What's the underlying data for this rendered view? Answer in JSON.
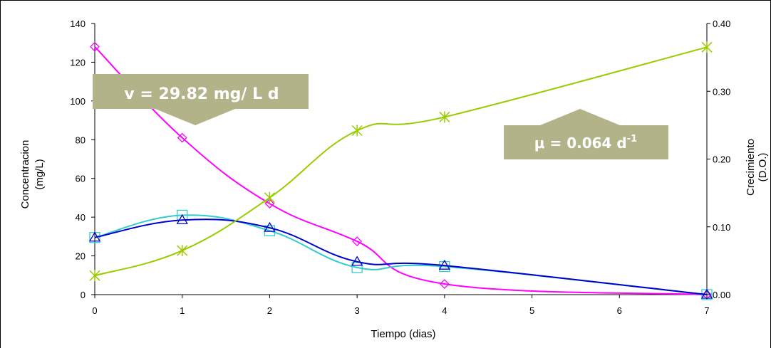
{
  "chart_data": {
    "type": "line",
    "title": "",
    "xlabel": "Tiempo (dias)",
    "ylabel_lines": [
      "Concentracion",
      "(mg/L)"
    ],
    "y2label_lines": [
      "Crecimiento",
      "(D.O.)"
    ],
    "xlim": [
      0,
      7
    ],
    "ylim": [
      0,
      140
    ],
    "y2lim": [
      0,
      0.4
    ],
    "x_ticks": [
      "0",
      "1",
      "2",
      "3",
      "4",
      "5",
      "6",
      "7"
    ],
    "y_ticks": [
      "0",
      "20",
      "40",
      "60",
      "80",
      "100",
      "120",
      "140"
    ],
    "y2_ticks": [
      "0.00",
      "0.10",
      "0.20",
      "0.30",
      "0.40"
    ],
    "grid": false,
    "series": [
      {
        "axis": "left",
        "marker": "diamond",
        "color": "#ff00ff",
        "x": [
          0,
          1,
          2,
          3,
          4,
          7
        ],
        "y": [
          128,
          81,
          47,
          27.5,
          5.5,
          0
        ]
      },
      {
        "axis": "left",
        "marker": "square",
        "color": "#33cccc",
        "x": [
          0,
          1,
          2,
          3,
          4,
          7
        ],
        "y": [
          29.5,
          41,
          33,
          14,
          14.5,
          0
        ]
      },
      {
        "axis": "left",
        "marker": "triangle",
        "color": "#0000cc",
        "x": [
          0,
          1,
          2,
          3,
          4,
          7
        ],
        "y": [
          29.5,
          38.5,
          34.5,
          17,
          15,
          0
        ]
      },
      {
        "axis": "right",
        "marker": "star",
        "color": "#99cc00",
        "x": [
          0,
          1,
          2,
          3,
          4,
          7
        ],
        "y": [
          0.028,
          0.065,
          0.143,
          0.242,
          0.262,
          0.365
        ]
      }
    ],
    "annotations": {
      "rate": {
        "text": "v = 29.82 mg/ L d"
      },
      "growth": {
        "base": "μ = 0.064 d",
        "sup": "-1"
      }
    },
    "colors": {
      "callout": "#b3b38a",
      "axis": "#000000"
    }
  }
}
